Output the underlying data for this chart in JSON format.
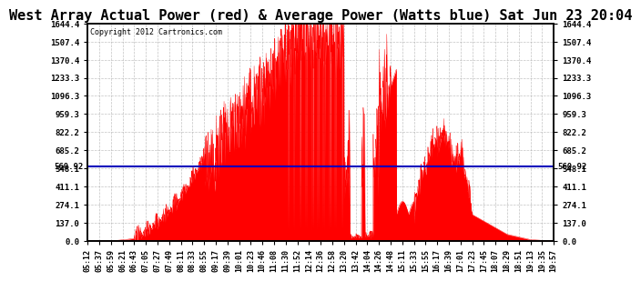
{
  "title": "West Array Actual Power (red) & Average Power (Watts blue) Sat Jun 23 20:04",
  "copyright": "Copyright 2012 Cartronics.com",
  "avg_power": 560.92,
  "ymax": 1644.4,
  "yticks": [
    0.0,
    137.0,
    274.1,
    411.1,
    548.1,
    685.2,
    822.2,
    959.3,
    1096.3,
    1233.3,
    1370.4,
    1507.4,
    1644.4
  ],
  "avg_label": "560.92",
  "background_color": "#ffffff",
  "fill_color": "#ff0000",
  "line_color": "#ff0000",
  "avg_line_color": "#0000bb",
  "grid_color": "#aaaaaa",
  "title_fontsize": 11,
  "time_labels": [
    "05:12",
    "05:37",
    "05:59",
    "06:21",
    "06:43",
    "07:05",
    "07:27",
    "07:49",
    "08:11",
    "08:33",
    "08:55",
    "09:17",
    "09:39",
    "10:01",
    "10:23",
    "10:46",
    "11:08",
    "11:30",
    "11:52",
    "12:14",
    "12:36",
    "12:58",
    "13:20",
    "13:42",
    "14:04",
    "14:26",
    "14:48",
    "15:11",
    "15:33",
    "15:55",
    "16:17",
    "16:39",
    "17:01",
    "17:23",
    "17:45",
    "18:07",
    "18:29",
    "18:51",
    "19:13",
    "19:35",
    "19:57"
  ]
}
